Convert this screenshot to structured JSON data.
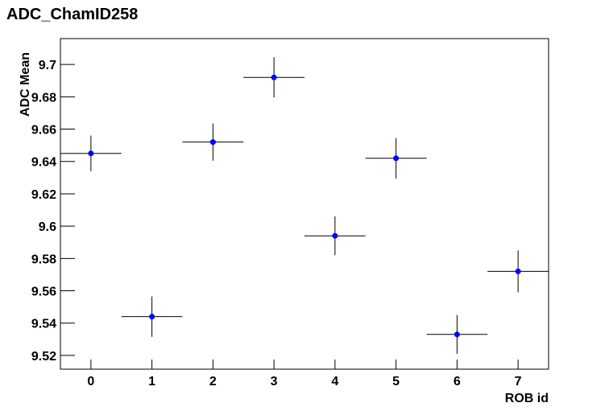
{
  "chart_data": {
    "type": "errorbar",
    "title": "ADC_ChamID258",
    "x_label": "ROB id",
    "y_label": "ADC Mean",
    "series": [
      {
        "color": "#0000ff",
        "x": [
          0,
          1,
          2,
          3,
          4,
          5,
          6,
          7
        ],
        "values": [
          9.645,
          9.544,
          9.652,
          9.692,
          9.594,
          9.642,
          9.533,
          9.572
        ],
        "errors": [
          0.011,
          0.0125,
          0.0115,
          0.0125,
          0.012,
          0.0125,
          0.012,
          0.013
        ],
        "xerrors": [
          0.5,
          0.5,
          0.5,
          0.5,
          0.5,
          0.5,
          0.5,
          0.5
        ]
      }
    ],
    "xlim": [
      -0.5,
      7.5
    ],
    "xticks": [
      0,
      1,
      2,
      3,
      4,
      5,
      6,
      7
    ],
    "ylim": [
      9.5115,
      9.716
    ],
    "yticks": [
      9.52,
      9.54,
      9.56,
      9.58,
      9.6,
      9.62,
      9.64,
      9.66,
      9.68,
      9.7
    ]
  }
}
